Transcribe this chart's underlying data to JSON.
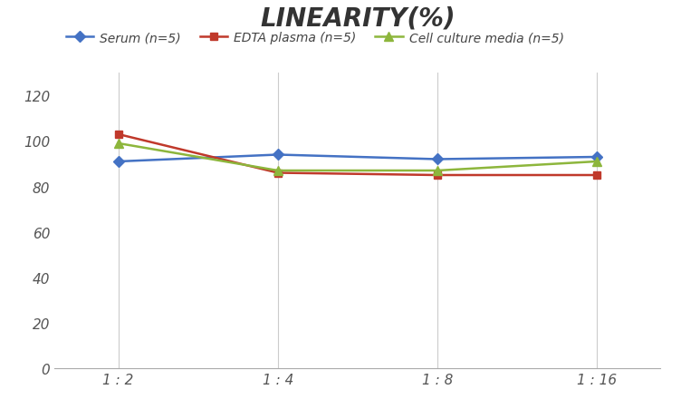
{
  "title": "LINEARITY(%)",
  "title_fontsize": 20,
  "title_style": "italic",
  "title_weight": "bold",
  "title_color": "#333333",
  "x_labels": [
    "1 : 2",
    "1 : 4",
    "1 : 8",
    "1 : 16"
  ],
  "x_positions": [
    0,
    1,
    2,
    3
  ],
  "series": [
    {
      "label": "Serum (n=5)",
      "values": [
        91,
        94,
        92,
        93
      ],
      "color": "#4472C4",
      "marker": "D",
      "marker_size": 6,
      "linewidth": 1.8
    },
    {
      "label": "EDTA plasma (n=5)",
      "values": [
        103,
        86,
        85,
        85
      ],
      "color": "#C0392B",
      "marker": "s",
      "marker_size": 6,
      "linewidth": 1.8
    },
    {
      "label": "Cell culture media (n=5)",
      "values": [
        99,
        87,
        87,
        91
      ],
      "color": "#8DB63C",
      "marker": "^",
      "marker_size": 7,
      "linewidth": 1.8
    }
  ],
  "ylim": [
    0,
    130
  ],
  "yticks": [
    0,
    20,
    40,
    60,
    80,
    100,
    120
  ],
  "grid_color": "#CCCCCC",
  "grid_linewidth": 0.8,
  "background_color": "#FFFFFF",
  "legend_fontsize": 10,
  "tick_fontsize": 11,
  "tick_color": "#555555"
}
